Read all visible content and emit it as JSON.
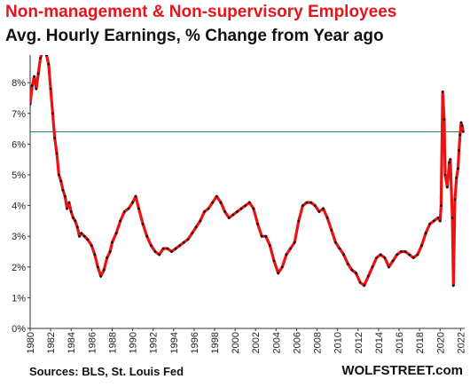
{
  "chart_data": {
    "type": "line",
    "title": "Non-management  & Non-supervisory  Employees",
    "subtitle": "Avg. Hourly Earnings, % Change from Year ago",
    "xlabel": "",
    "ylabel": "",
    "x_ticks": [
      "1980",
      "1982",
      "1984",
      "1986",
      "1988",
      "1990",
      "1992",
      "1994",
      "1996",
      "1998",
      "2000",
      "2002",
      "2004",
      "2006",
      "2008",
      "2010",
      "2012",
      "2014",
      "2016",
      "2018",
      "2020",
      "2022"
    ],
    "y_ticks": [
      "0%",
      "1%",
      "2%",
      "3%",
      "4%",
      "5%",
      "6%",
      "7%",
      "8%"
    ],
    "xlim": [
      1980,
      2022.4
    ],
    "ylim": [
      0,
      8.9
    ],
    "grid": false,
    "reference_line": 6.4,
    "colors": {
      "line": "#ee1111",
      "marker": "#111111",
      "reference": "#2e8b57"
    },
    "series": [
      {
        "points": [
          [
            1980.0,
            7.3
          ],
          [
            1980.2,
            7.9
          ],
          [
            1980.4,
            8.2
          ],
          [
            1980.6,
            7.8
          ],
          [
            1980.8,
            8.3
          ],
          [
            1981.0,
            8.8
          ],
          [
            1981.2,
            9.0
          ],
          [
            1981.4,
            9.2
          ],
          [
            1981.6,
            8.9
          ],
          [
            1981.8,
            8.6
          ],
          [
            1982.0,
            7.8
          ],
          [
            1982.2,
            7.0
          ],
          [
            1982.4,
            6.2
          ],
          [
            1982.6,
            5.7
          ],
          [
            1982.8,
            5.0
          ],
          [
            1983.0,
            4.8
          ],
          [
            1983.2,
            4.5
          ],
          [
            1983.4,
            4.3
          ],
          [
            1983.6,
            3.9
          ],
          [
            1983.8,
            4.1
          ],
          [
            1984.0,
            3.8
          ],
          [
            1984.2,
            3.6
          ],
          [
            1984.4,
            3.5
          ],
          [
            1984.6,
            3.3
          ],
          [
            1984.8,
            3.0
          ],
          [
            1985.0,
            3.1
          ],
          [
            1985.3,
            3.0
          ],
          [
            1985.6,
            2.9
          ],
          [
            1986.0,
            2.7
          ],
          [
            1986.3,
            2.4
          ],
          [
            1986.6,
            2.0
          ],
          [
            1986.9,
            1.7
          ],
          [
            1987.2,
            1.9
          ],
          [
            1987.5,
            2.3
          ],
          [
            1987.8,
            2.5
          ],
          [
            1988.0,
            2.8
          ],
          [
            1988.4,
            3.1
          ],
          [
            1988.8,
            3.5
          ],
          [
            1989.2,
            3.8
          ],
          [
            1989.6,
            3.9
          ],
          [
            1990.0,
            4.1
          ],
          [
            1990.3,
            4.3
          ],
          [
            1990.6,
            3.9
          ],
          [
            1991.0,
            3.4
          ],
          [
            1991.4,
            3.0
          ],
          [
            1991.8,
            2.7
          ],
          [
            1992.2,
            2.5
          ],
          [
            1992.6,
            2.4
          ],
          [
            1993.0,
            2.6
          ],
          [
            1993.4,
            2.6
          ],
          [
            1993.8,
            2.5
          ],
          [
            1994.2,
            2.6
          ],
          [
            1994.6,
            2.7
          ],
          [
            1995.0,
            2.8
          ],
          [
            1995.4,
            2.9
          ],
          [
            1995.8,
            3.1
          ],
          [
            1996.2,
            3.3
          ],
          [
            1996.6,
            3.5
          ],
          [
            1997.0,
            3.8
          ],
          [
            1997.4,
            3.9
          ],
          [
            1997.8,
            4.1
          ],
          [
            1998.2,
            4.3
          ],
          [
            1998.6,
            4.1
          ],
          [
            1999.0,
            3.8
          ],
          [
            1999.4,
            3.6
          ],
          [
            1999.8,
            3.7
          ],
          [
            2000.2,
            3.8
          ],
          [
            2000.6,
            3.9
          ],
          [
            2001.0,
            4.0
          ],
          [
            2001.4,
            4.1
          ],
          [
            2001.8,
            3.9
          ],
          [
            2002.2,
            3.4
          ],
          [
            2002.6,
            3.0
          ],
          [
            2003.0,
            3.0
          ],
          [
            2003.4,
            2.7
          ],
          [
            2003.8,
            2.2
          ],
          [
            2004.2,
            1.8
          ],
          [
            2004.6,
            2.0
          ],
          [
            2005.0,
            2.4
          ],
          [
            2005.4,
            2.6
          ],
          [
            2005.8,
            2.8
          ],
          [
            2006.2,
            3.5
          ],
          [
            2006.6,
            4.0
          ],
          [
            2007.0,
            4.1
          ],
          [
            2007.4,
            4.1
          ],
          [
            2007.8,
            4.0
          ],
          [
            2008.2,
            3.8
          ],
          [
            2008.6,
            3.9
          ],
          [
            2009.0,
            3.6
          ],
          [
            2009.4,
            3.2
          ],
          [
            2009.8,
            2.8
          ],
          [
            2010.2,
            2.6
          ],
          [
            2010.6,
            2.4
          ],
          [
            2011.0,
            2.1
          ],
          [
            2011.4,
            1.9
          ],
          [
            2011.8,
            1.8
          ],
          [
            2012.2,
            1.5
          ],
          [
            2012.6,
            1.4
          ],
          [
            2013.0,
            1.7
          ],
          [
            2013.4,
            2.0
          ],
          [
            2013.8,
            2.3
          ],
          [
            2014.2,
            2.4
          ],
          [
            2014.6,
            2.3
          ],
          [
            2015.0,
            2.0
          ],
          [
            2015.4,
            2.2
          ],
          [
            2015.8,
            2.4
          ],
          [
            2016.2,
            2.5
          ],
          [
            2016.6,
            2.5
          ],
          [
            2017.0,
            2.4
          ],
          [
            2017.4,
            2.3
          ],
          [
            2017.8,
            2.4
          ],
          [
            2018.2,
            2.7
          ],
          [
            2018.6,
            3.1
          ],
          [
            2019.0,
            3.4
          ],
          [
            2019.4,
            3.5
          ],
          [
            2019.8,
            3.6
          ],
          [
            2020.0,
            3.5
          ],
          [
            2020.1,
            4.0
          ],
          [
            2020.25,
            7.7
          ],
          [
            2020.4,
            6.8
          ],
          [
            2020.5,
            5.0
          ],
          [
            2020.7,
            4.6
          ],
          [
            2020.9,
            5.4
          ],
          [
            2021.0,
            5.5
          ],
          [
            2021.2,
            3.6
          ],
          [
            2021.3,
            1.4
          ],
          [
            2021.45,
            4.2
          ],
          [
            2021.6,
            4.9
          ],
          [
            2021.75,
            5.2
          ],
          [
            2021.85,
            5.8
          ],
          [
            2021.95,
            6.3
          ],
          [
            2022.05,
            6.7
          ],
          [
            2022.15,
            6.6
          ],
          [
            2022.25,
            6.4
          ]
        ]
      }
    ]
  },
  "footer": {
    "sources": "Sources: BLS, St. Louis Fed",
    "brand": "WOLFSTREET.com"
  }
}
